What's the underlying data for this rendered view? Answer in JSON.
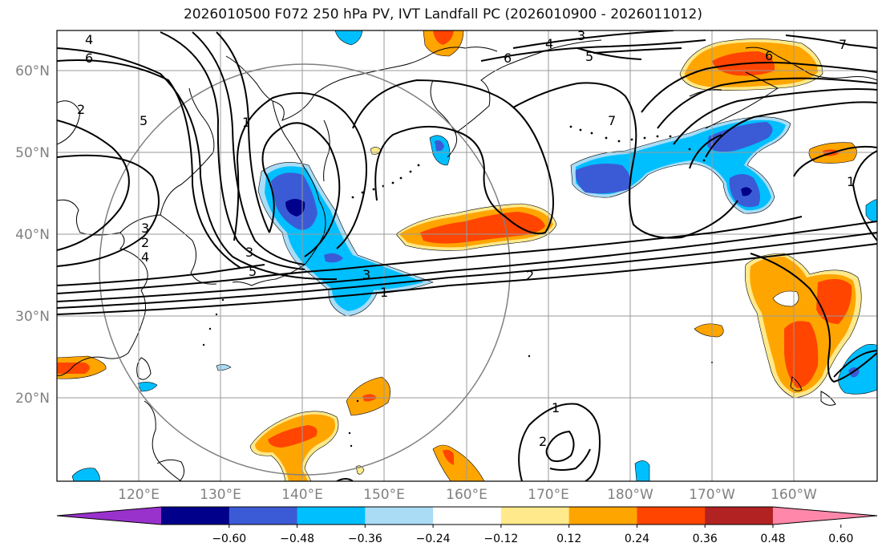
{
  "title": "2026010500 F072 250 hPa PV, IVT Landfall PC (2026010900 - 2026011012)",
  "lat_ticks": [
    "60°N",
    "50°N",
    "40°N",
    "30°N",
    "20°N"
  ],
  "lon_ticks": [
    "120°E",
    "130°E",
    "140°E",
    "150°E",
    "160°E",
    "170°E",
    "180°W",
    "170°W",
    "160°W"
  ],
  "colorbar": {
    "labels": [
      "−0.60",
      "−0.48",
      "−0.36",
      "−0.24",
      "−0.12",
      "0.12",
      "0.24",
      "0.36",
      "0.48",
      "0.60"
    ],
    "colors": [
      "#9932cc",
      "#00008b",
      "#3b5bd6",
      "#00bfff",
      "#aadcf6",
      "#ffffff",
      "#ffe98a",
      "#ffa500",
      "#ff4500",
      "#b22222",
      "#ff88aa"
    ]
  },
  "contour_labels": [
    "4",
    "6",
    "3",
    "2",
    "5",
    "3",
    "6",
    "4",
    "5",
    "7",
    "6",
    "7",
    "1",
    "2",
    "3",
    "5",
    "3",
    "1",
    "2",
    "1",
    "2",
    "1",
    "4"
  ]
}
